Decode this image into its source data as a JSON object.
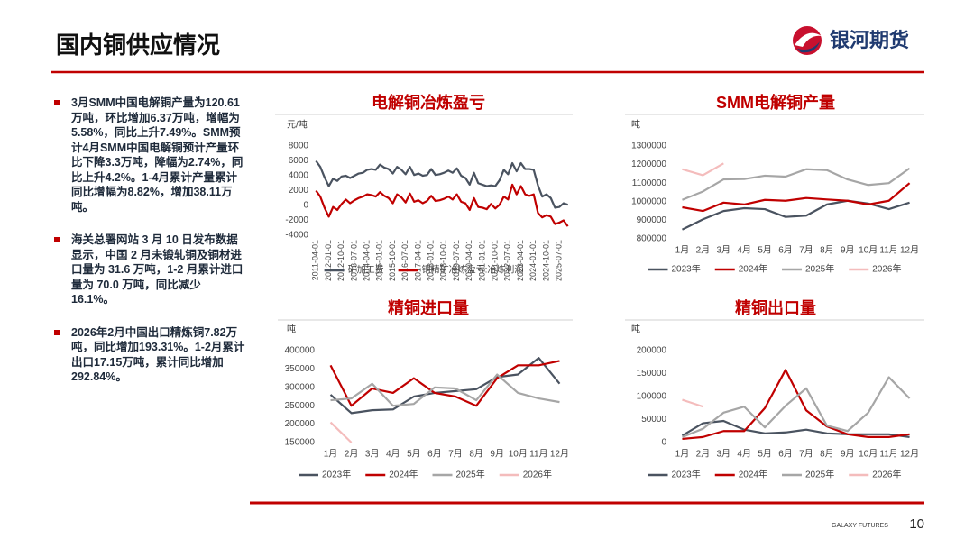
{
  "header": {
    "title": "国内铜供应情况",
    "logo_text": "银河期货"
  },
  "bullets": [
    "3月SMM中国电解铜产量为120.61万吨，环比增加6.37万吨，增幅为5.58%，同比上升7.49%。SMM预计4月SMM中国电解铜预计产量环比下降3.3万吨，降幅为2.74%，同比上升4.2%。1-4月累计产量累计同比增幅为8.82%，增加38.11万吨。",
    "海关总署网站 3 月 10 日发布数据显示，中国 2 月未锻轧铜及铜材进口量为 31.6 万吨，1-2 月累计进口量为 70.0 万吨，同比减少 16.1%。",
    "2026年2月中国出口精炼铜7.82万吨，同比增加193.31%。1-2月累计出口17.15万吨，累计同比增加292.84%。"
  ],
  "chart_data": [
    {
      "type": "line",
      "title": "电解铜冶炼盈亏",
      "y_unit": "元/吨",
      "x_tick_rotation": -90,
      "categories": [
        "2011-04-01",
        null,
        null,
        "2012-01-01",
        null,
        null,
        "2012-10-01",
        null,
        null,
        "2013-07-01",
        null,
        null,
        "2014-04-01",
        null,
        null,
        "2015-01-01",
        null,
        null,
        "2015-10-01",
        null,
        null,
        "2016-07-01",
        null,
        null,
        "2017-04-01",
        null,
        null,
        "2018-01-01",
        null,
        null,
        "2018-10-01",
        null,
        null,
        "2019-07-01",
        null,
        null,
        "2020-04-01",
        null,
        null,
        "2021-01-01",
        null,
        null,
        "2021-10-01",
        null,
        null,
        "2022-07-01",
        null,
        null,
        "2023-04-01",
        null,
        null,
        "2024-01-01",
        null,
        null,
        "2024-10-01",
        null,
        null,
        "2025-07-01",
        null,
        null
      ],
      "series": [
        {
          "name": "矿加工费",
          "color": "#4a5360",
          "values": [
            6000,
            5200,
            3800,
            2600,
            3600,
            3300,
            3900,
            4000,
            3700,
            4000,
            4300,
            4400,
            4800,
            4900,
            4800,
            5500,
            5100,
            4900,
            4300,
            5200,
            4800,
            4200,
            5200,
            4100,
            4300,
            4000,
            4100,
            4900,
            4100,
            4200,
            4400,
            4700,
            4400,
            5000,
            4000,
            3700,
            2800,
            4400,
            3000,
            2800,
            2600,
            2700,
            2600,
            3400,
            4800,
            4200,
            5700,
            4600,
            5700,
            4900,
            4900,
            4800,
            2700,
            1200,
            1500,
            1000,
            -300,
            -200,
            300,
            100
          ]
        },
        {
          "name": "铜精矿冶炼盈亏:冶炼利润",
          "color": "#c00000",
          "values": [
            2000,
            1200,
            -300,
            -1500,
            -200,
            -600,
            200,
            800,
            300,
            700,
            1000,
            1200,
            1500,
            1400,
            1200,
            1800,
            1300,
            1000,
            300,
            1500,
            1100,
            400,
            1600,
            500,
            700,
            300,
            600,
            1300,
            600,
            700,
            900,
            1200,
            800,
            1500,
            500,
            300,
            -600,
            1000,
            -200,
            -300,
            -500,
            200,
            -400,
            100,
            1200,
            800,
            2800,
            1500,
            2600,
            1500,
            1300,
            1500,
            -1000,
            -1600,
            -1300,
            -1500,
            -2500,
            -2300,
            -2000,
            -2800
          ]
        }
      ],
      "ylim": [
        -4000,
        8000
      ],
      "yticks": [
        -4000,
        -2000,
        0,
        2000,
        4000,
        6000,
        8000
      ],
      "legend": "bottom"
    },
    {
      "type": "line",
      "title": "SMM电解铜产量",
      "y_unit": "吨",
      "x_tick_rotation": 0,
      "categories": [
        "1月",
        "2月",
        "3月",
        "4月",
        "5月",
        "6月",
        "7月",
        "8月",
        "9月",
        "10月",
        "11月",
        "12月"
      ],
      "series": [
        {
          "name": "2023年",
          "color": "#4a5360",
          "values": [
            850000,
            905000,
            950000,
            965000,
            960000,
            918000,
            925000,
            985000,
            1005000,
            990000,
            960000,
            995000
          ]
        },
        {
          "name": "2024年",
          "color": "#c00000",
          "values": [
            970000,
            950000,
            995000,
            985000,
            1010000,
            1005000,
            1020000,
            1012000,
            1005000,
            985000,
            1005000,
            1100000
          ]
        },
        {
          "name": "2025年",
          "color": "#a6a6a6",
          "values": [
            1010000,
            1055000,
            1120000,
            1122000,
            1140000,
            1135000,
            1175000,
            1170000,
            1120000,
            1090000,
            1100000,
            1180000
          ]
        },
        {
          "name": "2026年",
          "color": "#f4bcbc",
          "values": [
            1175000,
            1142400,
            1206100,
            null,
            null,
            null,
            null,
            null,
            null,
            null,
            null,
            null
          ]
        }
      ],
      "ylim": [
        800000,
        1300000
      ],
      "yticks": [
        800000,
        900000,
        1000000,
        1100000,
        1200000,
        1300000
      ],
      "legend": "bottom"
    },
    {
      "type": "line",
      "title": "精铜进口量",
      "y_unit": "吨",
      "x_tick_rotation": 0,
      "categories": [
        "1月",
        "2月",
        "3月",
        "4月",
        "5月",
        "6月",
        "7月",
        "8月",
        "9月",
        "10月",
        "11月",
        "12月"
      ],
      "series": [
        {
          "name": "2023年",
          "color": "#4a5360",
          "values": [
            280000,
            230000,
            238000,
            240000,
            275000,
            285000,
            290000,
            295000,
            328000,
            335000,
            380000,
            310000
          ]
        },
        {
          "name": "2024年",
          "color": "#c00000",
          "values": [
            360000,
            250000,
            297000,
            285000,
            325000,
            285000,
            275000,
            250000,
            325000,
            360000,
            360000,
            372000
          ]
        },
        {
          "name": "2025年",
          "color": "#a6a6a6",
          "values": [
            265000,
            270000,
            310000,
            250000,
            255000,
            300000,
            297000,
            265000,
            335000,
            285000,
            270000,
            260000
          ]
        },
        {
          "name": "2026年",
          "color": "#f4bcbc",
          "values": [
            205000,
            150000,
            null,
            null,
            null,
            null,
            null,
            null,
            null,
            null,
            null,
            null
          ]
        }
      ],
      "ylim": [
        150000,
        400000
      ],
      "yticks": [
        150000,
        200000,
        250000,
        300000,
        350000,
        400000
      ],
      "legend": "bottom"
    },
    {
      "type": "line",
      "title": "精铜出口量",
      "y_unit": "吨",
      "x_tick_rotation": 0,
      "categories": [
        "1月",
        "2月",
        "3月",
        "4月",
        "5月",
        "6月",
        "7月",
        "8月",
        "9月",
        "10月",
        "11月",
        "12月"
      ],
      "series": [
        {
          "name": "2023年",
          "color": "#4a5360",
          "values": [
            15000,
            42000,
            47000,
            28000,
            20000,
            22000,
            28000,
            20000,
            18000,
            18000,
            18000,
            12000
          ]
        },
        {
          "name": "2024年",
          "color": "#c00000",
          "values": [
            8000,
            12000,
            25000,
            25000,
            75000,
            158000,
            70000,
            35000,
            18000,
            12000,
            12000,
            18000
          ]
        },
        {
          "name": "2025年",
          "color": "#a6a6a6",
          "values": [
            12000,
            30000,
            65000,
            78000,
            33000,
            80000,
            118000,
            37000,
            25000,
            65000,
            142000,
            96000
          ]
        },
        {
          "name": "2026年",
          "color": "#f4bcbc",
          "values": [
            93000,
            78200,
            null,
            null,
            null,
            null,
            null,
            null,
            null,
            null,
            null,
            null
          ]
        }
      ],
      "ylim": [
        0,
        200000
      ],
      "yticks": [
        0,
        50000,
        100000,
        150000,
        200000
      ],
      "legend": "bottom"
    }
  ],
  "footer": {
    "brand": "GALAXY FUTURES",
    "page": "10"
  }
}
